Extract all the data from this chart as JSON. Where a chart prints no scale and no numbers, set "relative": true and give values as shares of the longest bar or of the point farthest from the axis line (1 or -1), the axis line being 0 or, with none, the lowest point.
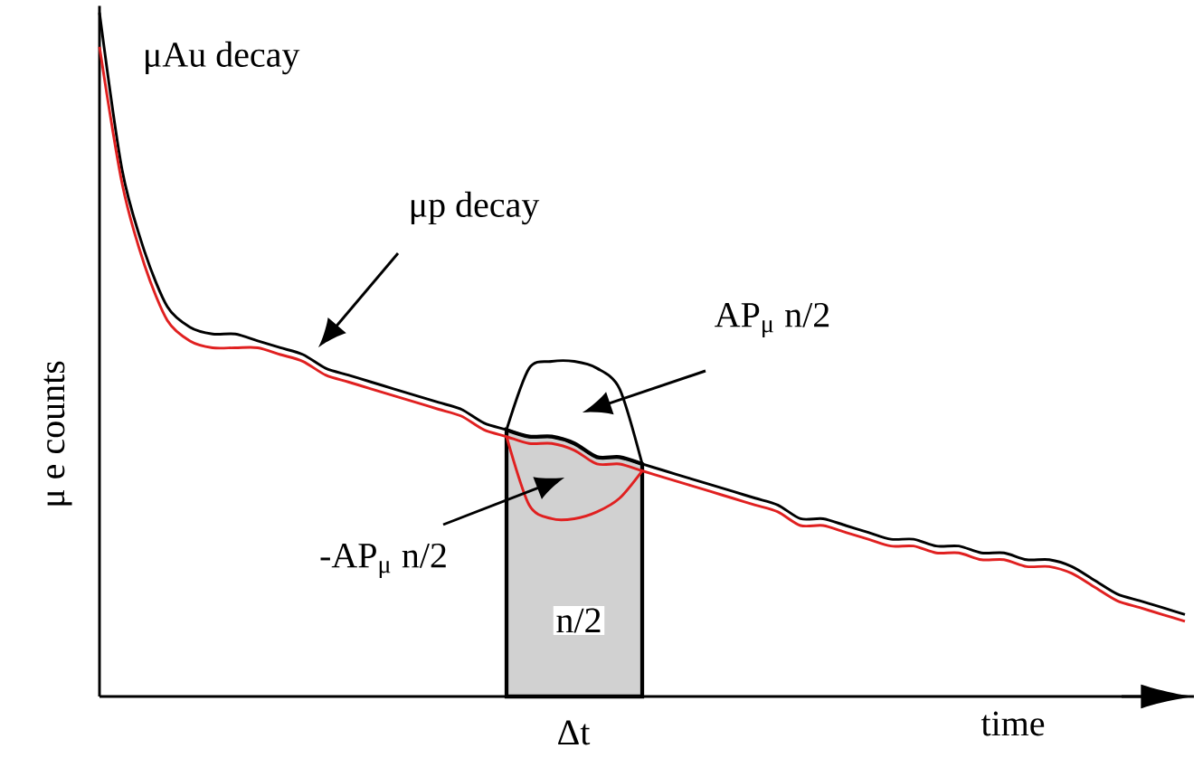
{
  "chart_data": {
    "type": "line",
    "relative": true,
    "xlabel": "time",
    "ylabel": "μ e counts",
    "categories": [
      null,
      null,
      null,
      null,
      null,
      null,
      null,
      null,
      null,
      null,
      null,
      null,
      null,
      null,
      null,
      null,
      null,
      null,
      null,
      null,
      null,
      null,
      null,
      null,
      null,
      null,
      null,
      null,
      null,
      null,
      null,
      null,
      null,
      null,
      null,
      null,
      null,
      null,
      null,
      null,
      null,
      null,
      null,
      null,
      null,
      null,
      null,
      null,
      null
    ],
    "series": [
      {
        "color": "#000000",
        "values": [
          1.0,
          0.77,
          0.65,
          0.57,
          0.54,
          0.53,
          0.53,
          0.52,
          0.51,
          0.5,
          0.48,
          0.47,
          0.46,
          0.45,
          0.44,
          0.43,
          0.42,
          0.4,
          0.39,
          0.38,
          0.38,
          0.37,
          0.35,
          0.35,
          0.34,
          0.33,
          0.32,
          0.31,
          0.3,
          0.29,
          0.28,
          0.26,
          0.26,
          0.25,
          0.24,
          0.23,
          0.23,
          0.22,
          0.22,
          0.21,
          0.21,
          0.2,
          0.2,
          0.19,
          0.17,
          0.15,
          0.14,
          0.13,
          0.12
        ]
      },
      {
        "color": "#e02020",
        "values": [
          0.95,
          0.75,
          0.63,
          0.55,
          0.52,
          0.51,
          0.51,
          0.51,
          0.5,
          0.49,
          0.47,
          0.46,
          0.45,
          0.44,
          0.43,
          0.42,
          0.41,
          0.39,
          0.38,
          0.37,
          0.37,
          0.36,
          0.34,
          0.34,
          0.33,
          0.32,
          0.31,
          0.3,
          0.29,
          0.28,
          0.27,
          0.25,
          0.25,
          0.24,
          0.23,
          0.22,
          0.22,
          0.21,
          0.21,
          0.2,
          0.2,
          0.19,
          0.19,
          0.18,
          0.16,
          0.14,
          0.13,
          0.12,
          0.11
        ]
      },
      {
        "color": "#000000",
        "values": [
          null,
          null,
          null,
          null,
          null,
          null,
          null,
          null,
          null,
          null,
          null,
          null,
          null,
          null,
          null,
          null,
          null,
          null,
          0.39,
          0.48,
          0.49,
          0.49,
          0.48,
          0.45,
          0.34,
          null,
          null,
          null,
          null,
          null,
          null,
          null,
          null,
          null,
          null,
          null,
          null,
          null,
          null,
          null,
          null,
          null,
          null,
          null,
          null,
          null,
          null,
          null,
          null
        ]
      },
      {
        "color": "#e02020",
        "values": [
          null,
          null,
          null,
          null,
          null,
          null,
          null,
          null,
          null,
          null,
          null,
          null,
          null,
          null,
          null,
          null,
          null,
          null,
          0.38,
          0.28,
          0.26,
          0.26,
          0.27,
          0.29,
          0.33,
          null,
          null,
          null,
          null,
          null,
          null,
          null,
          null,
          null,
          null,
          null,
          null,
          null,
          null,
          null,
          null,
          null,
          null,
          null,
          null,
          null,
          null,
          null,
          null
        ]
      }
    ],
    "annotations": [
      "μAu decay",
      "μp decay",
      "AP$_{μ}$ n/2",
      "-AP$_{μ}$ n/2",
      "Δt",
      "n/2"
    ]
  }
}
